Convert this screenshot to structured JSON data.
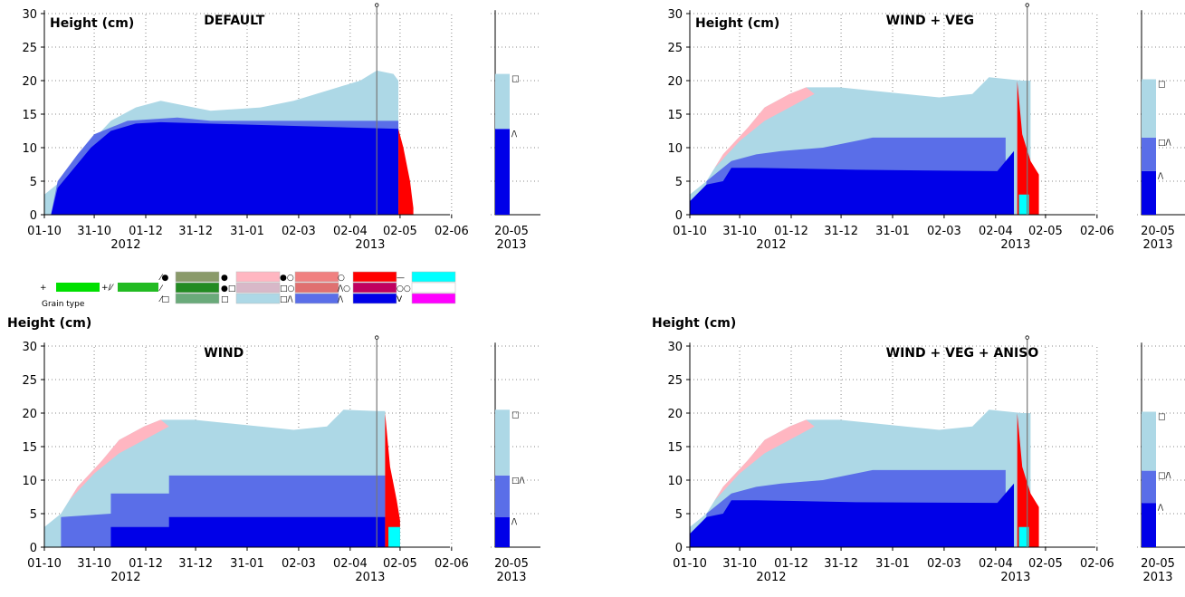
{
  "figure": {
    "legend": {
      "label": "Grain type",
      "entries": [
        {
          "symbol": "+",
          "color": "#00e000"
        },
        {
          "symbol": "+/⁄",
          "color": "#22bb22"
        },
        {
          "symbol": "⁄●",
          "color": "#8a9a6a"
        },
        {
          "symbol": "⁄",
          "color": "#228b22"
        },
        {
          "symbol": "⁄□",
          "color": "#6aaa7a"
        },
        {
          "symbol": "●",
          "color": "#ffb6c1"
        },
        {
          "symbol": "●□",
          "color": "#d8b8c8"
        },
        {
          "symbol": "□",
          "color": "#add8e6"
        },
        {
          "symbol": "●○",
          "color": "#f08080"
        },
        {
          "symbol": "□○",
          "color": "#e07070"
        },
        {
          "symbol": "□/\\",
          "color": "#5a6ee8"
        },
        {
          "symbol": "○",
          "color": "#ff0000"
        },
        {
          "symbol": "/\\○",
          "color": "#c00060"
        },
        {
          "symbol": "/\\",
          "color": "#0000e8"
        },
        {
          "symbol": "—",
          "color": "#00ffff"
        },
        {
          "symbol": "○○",
          "color": "#ffffff"
        },
        {
          "symbol": "V",
          "color": "#ff00ff"
        }
      ]
    },
    "shared": {
      "ylabel": "Height (cm)",
      "y_ticks": [
        "0",
        "5",
        "10",
        "15",
        "20",
        "25",
        "30"
      ],
      "x_ticks": [
        "01-10",
        "31-10",
        "01-12",
        "31-12",
        "31-01",
        "02-03",
        "02-04",
        "02-05",
        "02-06"
      ],
      "year_labels": [
        "2012",
        "2013"
      ],
      "side_date": "20-05",
      "side_year": "2013"
    }
  },
  "chart_data": [
    {
      "type": "area",
      "title": "DEFAULT",
      "ylabel": "Height (cm)",
      "ylim": [
        0,
        30
      ],
      "x_tick_labels": [
        "01-10",
        "31-10",
        "01-12",
        "31-12",
        "31-01",
        "02-03",
        "02-04",
        "02-05",
        "02-06"
      ],
      "marker_date": "20-05-2013",
      "total_snow_height": {
        "x": [
          "01-10",
          "31-10",
          "01-12",
          "31-12",
          "31-01",
          "02-03",
          "02-04",
          "20-05",
          "02-05"
        ],
        "y": [
          3,
          13,
          19,
          15.5,
          16,
          17.5,
          19,
          21,
          13
        ]
      },
      "side_profile": [
        {
          "grain": "/\\",
          "from": 0,
          "to": 12.8
        },
        {
          "grain": "□",
          "from": 12.8,
          "to": 21
        }
      ]
    },
    {
      "type": "area",
      "title": "WIND + VEG",
      "ylabel": "Height (cm)",
      "ylim": [
        0,
        30
      ],
      "x_tick_labels": [
        "01-10",
        "31-10",
        "01-12",
        "31-12",
        "31-01",
        "02-03",
        "02-04",
        "02-05",
        "02-06"
      ],
      "marker_date": "20-05-2013",
      "total_snow_height": {
        "x": [
          "01-10",
          "31-10",
          "01-12",
          "31-12",
          "31-01",
          "02-03",
          "02-04",
          "20-05",
          "02-05"
        ],
        "y": [
          3,
          15,
          19,
          18.5,
          18,
          17.5,
          20,
          20,
          3
        ]
      },
      "side_profile": [
        {
          "grain": "/\\",
          "from": 0,
          "to": 6.5
        },
        {
          "grain": "□/\\",
          "from": 6.5,
          "to": 11.5
        },
        {
          "grain": "□",
          "from": 11.5,
          "to": 20.2
        }
      ]
    },
    {
      "type": "area",
      "title": "WIND",
      "ylabel": "Height (cm)",
      "ylim": [
        0,
        30
      ],
      "x_tick_labels": [
        "01-10",
        "31-10",
        "01-12",
        "31-12",
        "31-01",
        "02-03",
        "02-04",
        "02-05",
        "02-06"
      ],
      "marker_date": "20-05-2013",
      "total_snow_height": {
        "x": [
          "01-10",
          "31-10",
          "01-12",
          "31-12",
          "31-01",
          "02-03",
          "02-04",
          "20-05",
          "02-05"
        ],
        "y": [
          3,
          15,
          19,
          18.5,
          18,
          17.5,
          20,
          20.3,
          3
        ]
      },
      "side_profile": [
        {
          "grain": "/\\",
          "from": 0,
          "to": 4.5
        },
        {
          "grain": "□/\\",
          "from": 4.5,
          "to": 10.7
        },
        {
          "grain": "□",
          "from": 10.7,
          "to": 20.5
        }
      ]
    },
    {
      "type": "area",
      "title": "WIND + VEG + ANISO",
      "ylabel": "Height (cm)",
      "ylim": [
        0,
        30
      ],
      "x_tick_labels": [
        "01-10",
        "31-10",
        "01-12",
        "31-12",
        "31-01",
        "02-03",
        "02-04",
        "02-05",
        "02-06"
      ],
      "marker_date": "20-05-2013",
      "total_snow_height": {
        "x": [
          "01-10",
          "31-10",
          "01-12",
          "31-12",
          "31-01",
          "02-03",
          "02-04",
          "20-05",
          "02-05"
        ],
        "y": [
          3,
          15,
          19,
          18.5,
          18,
          17.5,
          20,
          20.2,
          3
        ]
      },
      "side_profile": [
        {
          "grain": "/\\",
          "from": 0,
          "to": 6.6
        },
        {
          "grain": "□/\\",
          "from": 6.6,
          "to": 11.4
        },
        {
          "grain": "□",
          "from": 11.4,
          "to": 20.2
        }
      ]
    }
  ]
}
